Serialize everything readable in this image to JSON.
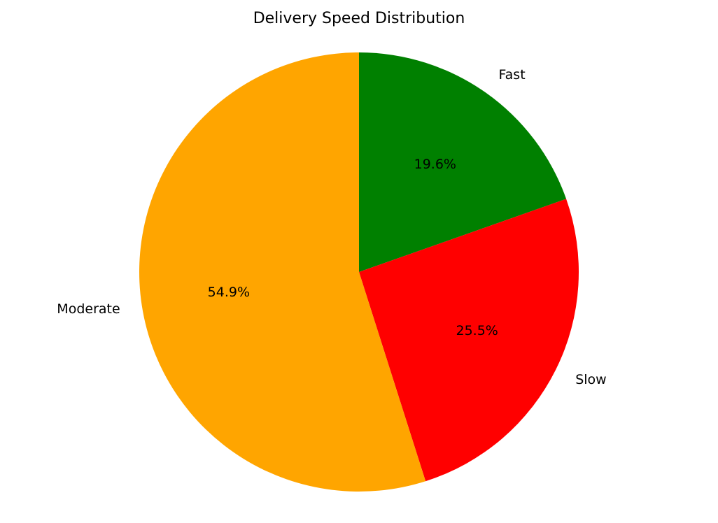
{
  "chart_data": {
    "type": "pie",
    "title": "Delivery Speed Distribution",
    "start_angle_deg": 90,
    "direction": "clockwise",
    "slices": [
      {
        "label": "Fast",
        "value": 19.6,
        "pct_label": "19.6%",
        "color": "#008000"
      },
      {
        "label": "Slow",
        "value": 25.5,
        "pct_label": "25.5%",
        "color": "#ff0000"
      },
      {
        "label": "Moderate",
        "value": 54.9,
        "pct_label": "54.9%",
        "color": "#ffa500"
      }
    ]
  }
}
